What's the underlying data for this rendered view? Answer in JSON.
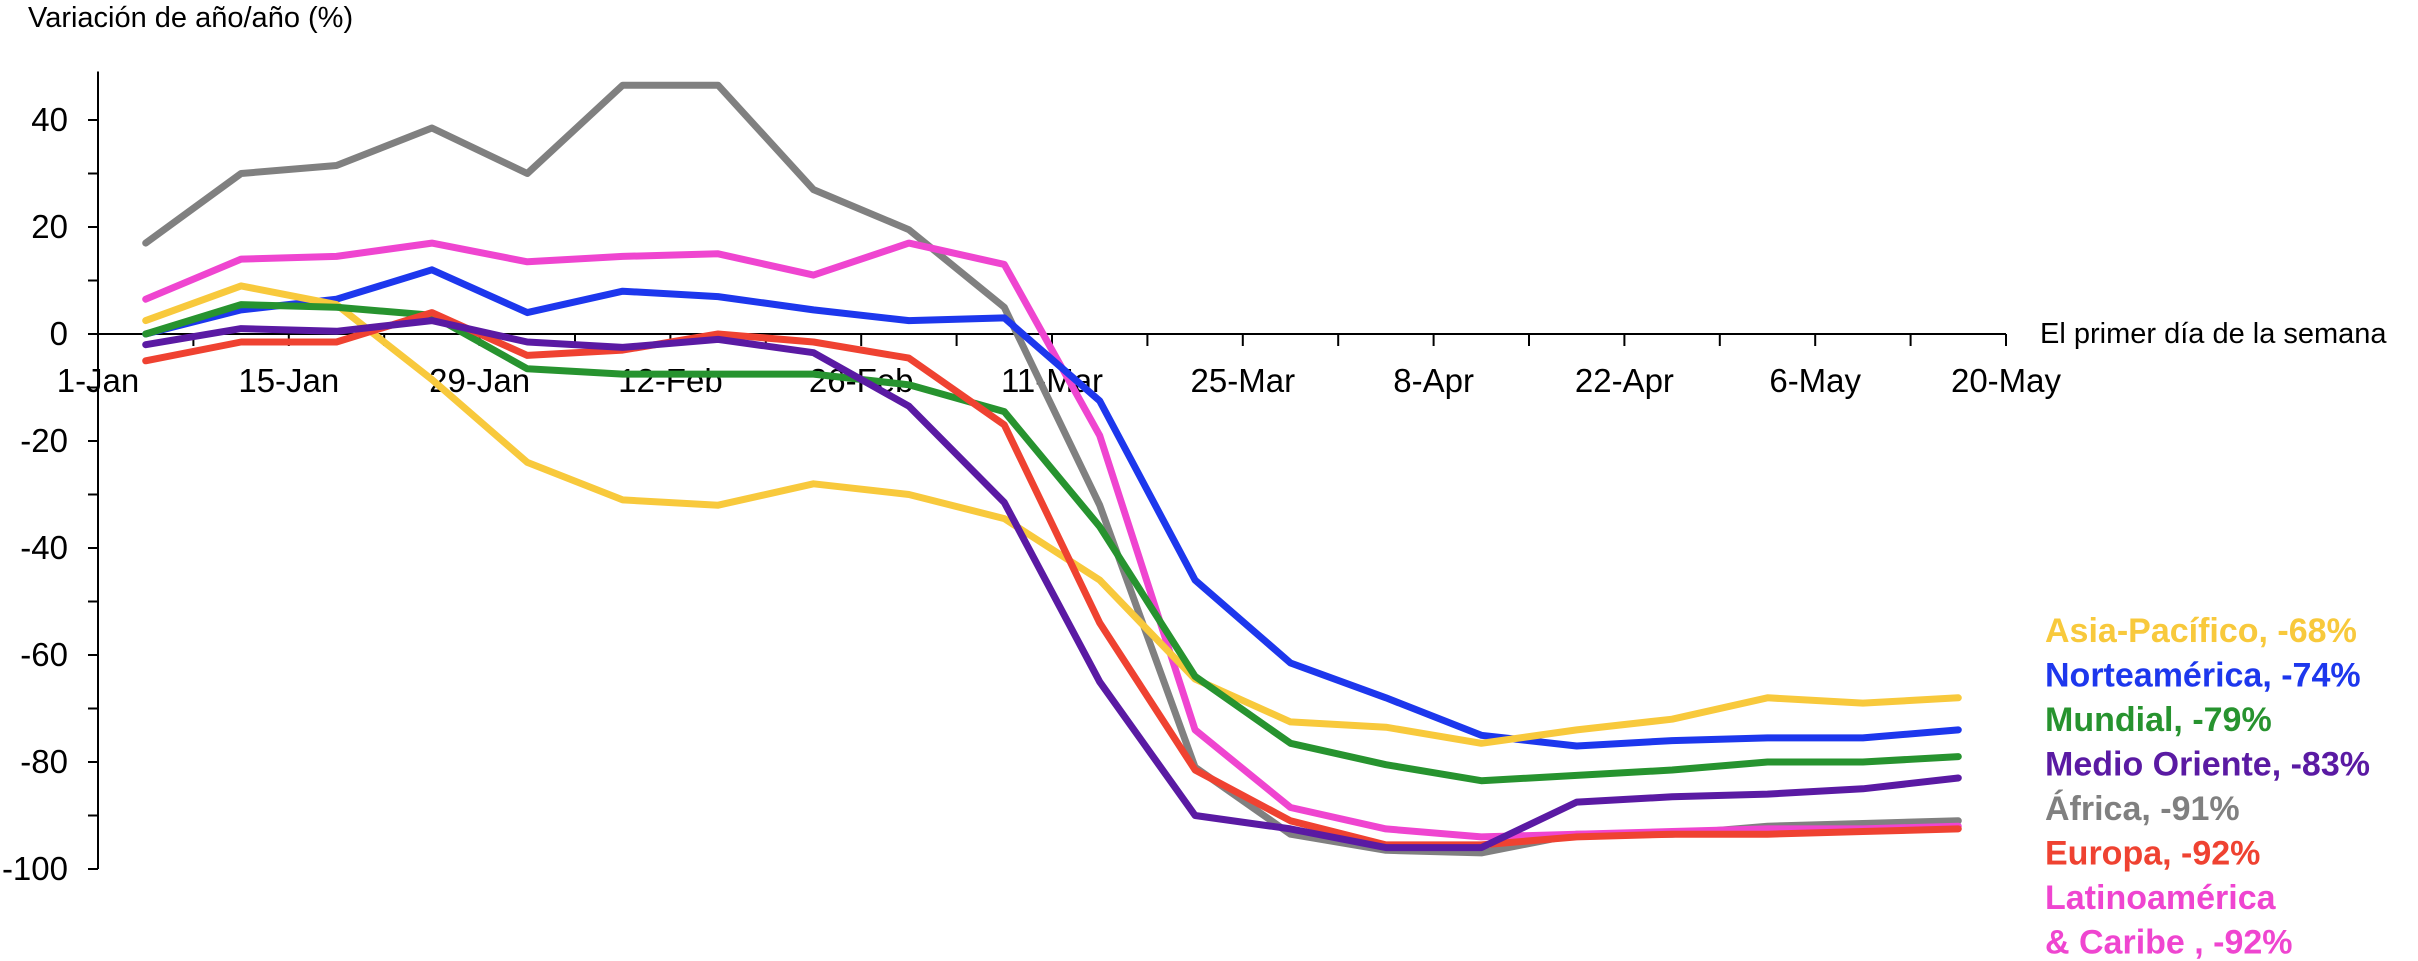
{
  "chart_data": {
    "type": "line",
    "ylabel": "Variación de año/año (%)",
    "xlabel": "El primer día de la semana",
    "ylim": [
      -100,
      50
    ],
    "yticks": [
      40,
      20,
      0,
      -20,
      -40,
      -60,
      -80,
      -100
    ],
    "xticks": [
      "1-Jan",
      "15-Jan",
      "29-Jan",
      "12-Feb",
      "26-Feb",
      "11-Mar",
      "25-Mar",
      "8-Apr",
      "22-Apr",
      "6-May",
      "20-May"
    ],
    "x_weeks": [
      0.5,
      1.5,
      2.5,
      3.5,
      4.5,
      5.5,
      6.5,
      7.5,
      8.5,
      9.5,
      10.5,
      11.5,
      12.5,
      13.5,
      14.5,
      15.5,
      16.5,
      17.5,
      18.5,
      19.5
    ],
    "grid": false,
    "legend_placement": "right",
    "series": [
      {
        "name": "África, -91%",
        "color": "#808080",
        "values": [
          17,
          30,
          31.5,
          38.5,
          30,
          46.5,
          46.5,
          27,
          19.5,
          5,
          -32,
          -81,
          -93.5,
          -96.5,
          -97,
          -93.5,
          -93.5,
          -92,
          -91.5,
          -91
        ]
      },
      {
        "name": "Latinoamérica & Caribe , -92%",
        "color": "#ef45d0",
        "values": [
          6.5,
          14,
          14.5,
          17,
          13.5,
          14.5,
          15,
          11,
          17,
          13,
          -19,
          -74,
          -88.5,
          -92.5,
          -94,
          -93.5,
          -93,
          -92.5,
          -92.5,
          -92
        ]
      },
      {
        "name": "Norteamérica, -74%",
        "color": "#1d37ed",
        "values": [
          0,
          4.5,
          6.5,
          12,
          4,
          8,
          7,
          4.5,
          2.5,
          3,
          -12.5,
          -46,
          -61.5,
          -68,
          -75,
          -77,
          -76,
          -75.5,
          -75.5,
          -74
        ]
      },
      {
        "name": "Asia-Pacífico, -68%",
        "color": "#f8c93c",
        "values": [
          2.5,
          9,
          5.5,
          -8.5,
          -24,
          -31,
          -32,
          -28,
          -30,
          -34.5,
          -46,
          -64.5,
          -72.5,
          -73.5,
          -76.5,
          -74,
          -72,
          -68,
          -69,
          -68
        ]
      },
      {
        "name": "Mundial, -79%",
        "color": "#27932f",
        "values": [
          0,
          5.5,
          5,
          3.5,
          -6.5,
          -7.5,
          -7.5,
          -7.5,
          -9.5,
          -14.5,
          -36,
          -64,
          -76.5,
          -80.5,
          -83.5,
          -82.5,
          -81.5,
          -80,
          -80,
          -79
        ]
      },
      {
        "name": "Europa, -92%",
        "color": "#ef4231",
        "values": [
          -5,
          -1.5,
          -1.5,
          4,
          -4,
          -3,
          0,
          -1.5,
          -4.5,
          -17,
          -54,
          -81.5,
          -91,
          -95.5,
          -95.5,
          -94,
          -93.5,
          -93.5,
          -93,
          -92.5
        ]
      },
      {
        "name": "Medio Oriente, -83%",
        "color": "#5a1aa3",
        "values": [
          -2,
          1,
          0.5,
          2.5,
          -1.5,
          -2.5,
          -1,
          -3.5,
          -13.5,
          -31.5,
          -65,
          -90,
          -92.5,
          -96,
          -96,
          -87.5,
          -86.5,
          -86,
          -85,
          -83
        ]
      }
    ],
    "legend_entries": [
      {
        "label": "Asia-Pacífico, -68%",
        "color": "#f8c93c"
      },
      {
        "label": "Norteamérica, -74%",
        "color": "#1d37ed"
      },
      {
        "label": "Mundial, -79%",
        "color": "#27932f"
      },
      {
        "label": "Medio Oriente, -83%",
        "color": "#5a1aa3"
      },
      {
        "label": "África, -91%",
        "color": "#808080"
      },
      {
        "label": "Europa, -92%",
        "color": "#ef4231"
      },
      {
        "label": "Latinoamérica",
        "color": "#ef45d0"
      },
      {
        "label": "& Caribe , -92%",
        "color": "#ef45d0"
      }
    ]
  }
}
